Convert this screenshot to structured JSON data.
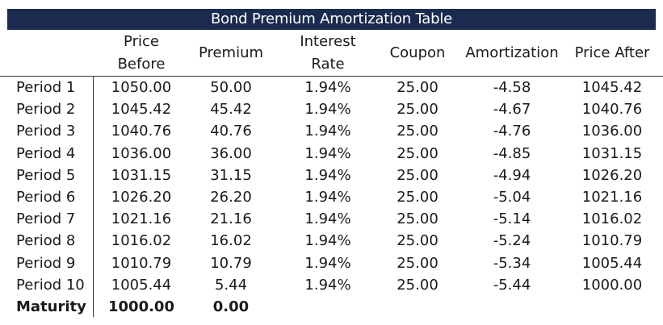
{
  "table": {
    "title": "Bond Premium Amortization Table",
    "headers": {
      "price_before": "Price Before",
      "premium": "Premium",
      "interest_rate": "Interest Rate",
      "coupon": "Coupon",
      "amortization": "Amortization",
      "price_after": "Price After"
    },
    "rows": [
      {
        "label": "Period 1",
        "price_before": "1050.00",
        "premium": "50.00",
        "interest_rate": "1.94%",
        "coupon": "25.00",
        "amortization": "-4.58",
        "price_after": "1045.42"
      },
      {
        "label": "Period 2",
        "price_before": "1045.42",
        "premium": "45.42",
        "interest_rate": "1.94%",
        "coupon": "25.00",
        "amortization": "-4.67",
        "price_after": "1040.76"
      },
      {
        "label": "Period 3",
        "price_before": "1040.76",
        "premium": "40.76",
        "interest_rate": "1.94%",
        "coupon": "25.00",
        "amortization": "-4.76",
        "price_after": "1036.00"
      },
      {
        "label": "Period 4",
        "price_before": "1036.00",
        "premium": "36.00",
        "interest_rate": "1.94%",
        "coupon": "25.00",
        "amortization": "-4.85",
        "price_after": "1031.15"
      },
      {
        "label": "Period 5",
        "price_before": "1031.15",
        "premium": "31.15",
        "interest_rate": "1.94%",
        "coupon": "25.00",
        "amortization": "-4.94",
        "price_after": "1026.20"
      },
      {
        "label": "Period 6",
        "price_before": "1026.20",
        "premium": "26.20",
        "interest_rate": "1.94%",
        "coupon": "25.00",
        "amortization": "-5.04",
        "price_after": "1021.16"
      },
      {
        "label": "Period 7",
        "price_before": "1021.16",
        "premium": "21.16",
        "interest_rate": "1.94%",
        "coupon": "25.00",
        "amortization": "-5.14",
        "price_after": "1016.02"
      },
      {
        "label": "Period 8",
        "price_before": "1016.02",
        "premium": "16.02",
        "interest_rate": "1.94%",
        "coupon": "25.00",
        "amortization": "-5.24",
        "price_after": "1010.79"
      },
      {
        "label": "Period 9",
        "price_before": "1010.79",
        "premium": "10.79",
        "interest_rate": "1.94%",
        "coupon": "25.00",
        "amortization": "-5.34",
        "price_after": "1005.44"
      },
      {
        "label": "Period 10",
        "price_before": "1005.44",
        "premium": "5.44",
        "interest_rate": "1.94%",
        "coupon": "25.00",
        "amortization": "-5.44",
        "price_after": "1000.00"
      }
    ],
    "maturity": {
      "label": "Maturity",
      "price_before": "1000.00",
      "premium": "0.00"
    },
    "colors": {
      "title_background": "#1a2b4f",
      "title_text": "#ffffff",
      "grid_line": "#333333"
    }
  }
}
